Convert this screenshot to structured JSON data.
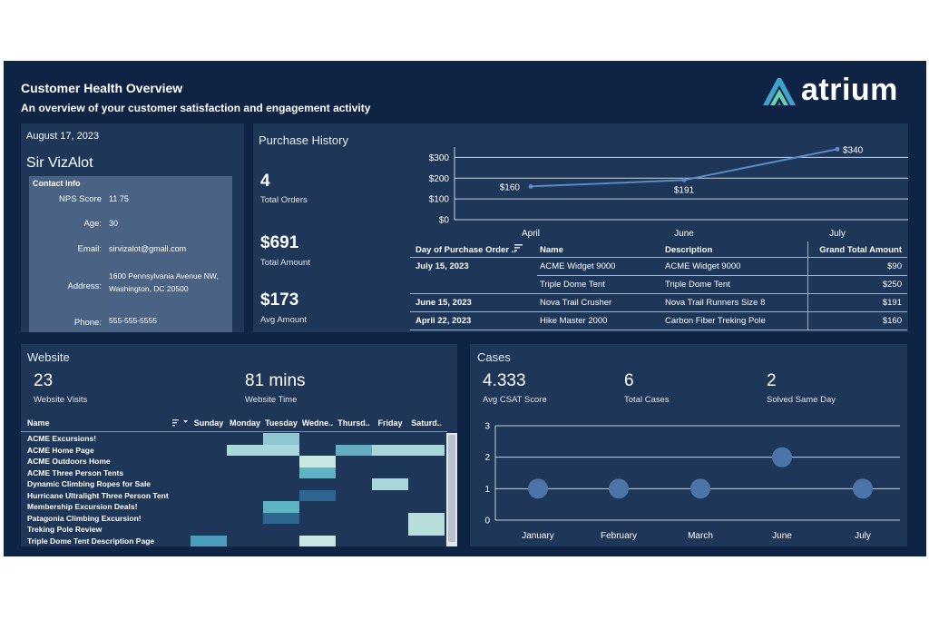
{
  "header": {
    "title": "Customer Health Overview",
    "subtitle": "An overview of your customer satisfaction and engagement activity",
    "logo_text": "atrium"
  },
  "contact": {
    "date": "August 17, 2023",
    "name": "Sir VizAlot",
    "section_title": "Contact Info",
    "fields": [
      {
        "label": "NPS Score",
        "value": "11.75"
      },
      {
        "label": "Age:",
        "value": "30"
      },
      {
        "label": "Email:",
        "value": "sirvizalot@gmail.com"
      },
      {
        "label": "Address:",
        "value": "1600 Pennsylvania Avenue NW,",
        "value2": "Washington, DC 20500"
      },
      {
        "label": "Phone:",
        "value": "555-555-5555"
      }
    ]
  },
  "purchase": {
    "title": "Purchase History",
    "kpis": [
      {
        "value": "4",
        "label": "Total Orders"
      },
      {
        "value": "$691",
        "label": "Total Amount"
      },
      {
        "value": "$173",
        "label": "Avg Amount"
      }
    ],
    "table": {
      "headers": [
        "Day of Purchase Order ..",
        "Name",
        "Description",
        "Grand Total Amount"
      ],
      "rows": [
        {
          "date": "July 15, 2023",
          "name": "ACME Widget 9000",
          "desc": "ACME Widget 9000",
          "amount": "$90"
        },
        {
          "date": "",
          "name": "Triple Dome Tent",
          "desc": "Triple Dome Tent",
          "amount": "$250"
        },
        {
          "date": "June 15, 2023",
          "name": "Nova Trail Crusher",
          "desc": "Nova Trail Runners Size 8",
          "amount": "$191"
        },
        {
          "date": "April 22, 2023",
          "name": "Hike Master 2000",
          "desc": "Carbon Fiber Treking Pole",
          "amount": "$160"
        }
      ]
    }
  },
  "website": {
    "title": "Website",
    "kpis": [
      {
        "value": "23",
        "label": "Website Visits"
      },
      {
        "value": "81 mins",
        "label": "Website Time"
      }
    ],
    "name_header": "Name",
    "days": [
      "Sunday",
      "Monday",
      "Tuesday",
      "Wedne..",
      "Thursd..",
      "Friday",
      "Saturd.."
    ],
    "pages": [
      "ACME Excursions!",
      "ACME Home Page",
      "ACME Outdoors Home",
      "ACME Three Person Tents",
      "Dynamic Climbing Ropes for Sale",
      "Hurricane Ultralight Three Person Tent",
      "Membership Excursion Deals!",
      "Patagonia Climbing Excursion!",
      "Treking Pole Review",
      "Triple Dome Tent Description Page"
    ],
    "heat": [
      {
        "row": 0,
        "day": 2,
        "color": "#8fc8d2"
      },
      {
        "row": 1,
        "day": 1,
        "color": "#a9d8dc"
      },
      {
        "row": 1,
        "day": 2,
        "color": "#a9d8dc"
      },
      {
        "row": 1,
        "day": 4,
        "color": "#68aec2"
      },
      {
        "row": 1,
        "day": 5,
        "color": "#a9d8dc"
      },
      {
        "row": 1,
        "day": 6,
        "color": "#a9d8dc"
      },
      {
        "row": 2,
        "day": 3,
        "color": "#c6e7e2"
      },
      {
        "row": 3,
        "day": 3,
        "color": "#5fb4c4"
      },
      {
        "row": 4,
        "day": 5,
        "color": "#a9d8dc"
      },
      {
        "row": 5,
        "day": 3,
        "color": "#2f6690"
      },
      {
        "row": 6,
        "day": 2,
        "color": "#5fb4c4"
      },
      {
        "row": 7,
        "day": 2,
        "color": "#2f6690"
      },
      {
        "row": 7,
        "day": 6,
        "color": "#b7dedb"
      },
      {
        "row": 8,
        "day": 6,
        "color": "#b7dedb"
      },
      {
        "row": 9,
        "day": 0,
        "color": "#4c9cbc"
      },
      {
        "row": 9,
        "day": 3,
        "color": "#c6e7e2"
      }
    ]
  },
  "cases": {
    "title": "Cases",
    "kpis": [
      {
        "value": "4.333",
        "label": "Avg CSAT Score"
      },
      {
        "value": "6",
        "label": "Total Cases"
      },
      {
        "value": "2",
        "label": "Solved Same Day"
      }
    ]
  },
  "chart_data": [
    {
      "type": "line",
      "x": [
        "April",
        "June",
        "July"
      ],
      "series": [
        {
          "values": [
            160,
            191,
            340
          ]
        }
      ],
      "data_labels": [
        "$160",
        "$191",
        "$340"
      ],
      "yticks": [
        "$0",
        "$100",
        "$200",
        "$300"
      ],
      "ylim": [
        0,
        350
      ],
      "grid": true
    },
    {
      "type": "scatter",
      "x": [
        "January",
        "February",
        "March",
        "June",
        "July"
      ],
      "series": [
        {
          "values": [
            1,
            1,
            1,
            2,
            1
          ]
        }
      ],
      "yticks": [
        "0",
        "1",
        "2",
        "3"
      ],
      "ylim": [
        0,
        3
      ],
      "grid": true
    }
  ],
  "colors": {
    "background": "#0f2444",
    "panel": "#1e3657",
    "contact_box": "#4a6384",
    "line": "#5b8ac4",
    "dot": "#4b75a8"
  }
}
